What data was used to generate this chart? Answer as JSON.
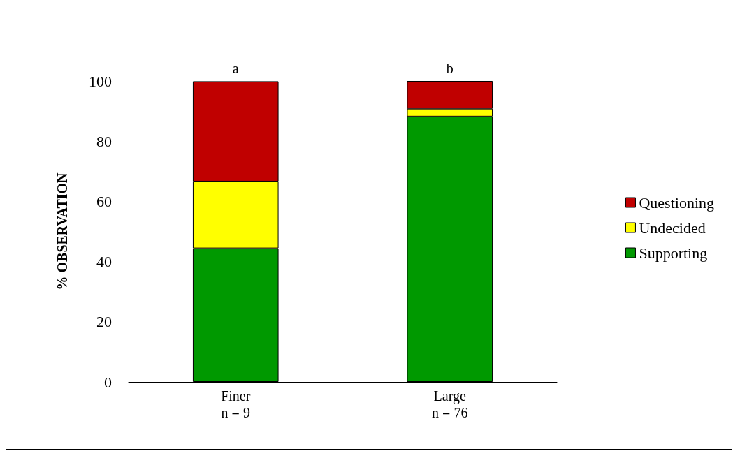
{
  "chart_data": {
    "type": "bar",
    "stacked": true,
    "categories": [
      "Finer\nn = 9",
      "Large\nn = 76"
    ],
    "series": [
      {
        "name": "Supporting",
        "color": "#009900",
        "values": [
          44.4,
          88.2
        ]
      },
      {
        "name": "Undecided",
        "color": "#ffff00",
        "values": [
          22.2,
          2.6
        ]
      },
      {
        "name": "Questioning",
        "color": "#c00000",
        "values": [
          33.3,
          9.2
        ]
      }
    ],
    "ylabel": "% OBSERVATION",
    "ylim": [
      0,
      100
    ],
    "yticks": [
      0,
      20,
      40,
      60,
      80,
      100
    ],
    "annotations": [
      {
        "text": "a",
        "x": "Finer\nn = 9",
        "y": 100
      },
      {
        "text": "b",
        "x": "Large\nn = 76",
        "y": 100
      }
    ],
    "legend": "right",
    "grid": false
  }
}
